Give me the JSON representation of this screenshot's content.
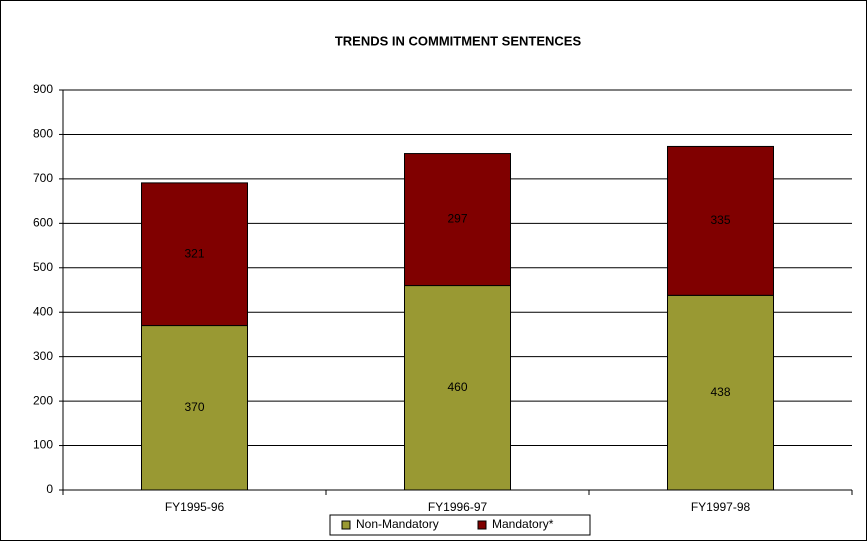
{
  "chart_data": {
    "type": "stacked_bar",
    "title": "TRENDS IN COMMITMENT SENTENCES",
    "categories": [
      "FY1995-96",
      "FY1996-97",
      "FY1997-98"
    ],
    "series": [
      {
        "name": "Non-Mandatory",
        "color": "#999933",
        "values": [
          370,
          460,
          438
        ]
      },
      {
        "name": "Mandatory*",
        "color": "#800000",
        "values": [
          321,
          297,
          335
        ]
      }
    ],
    "ylim": [
      0,
      900
    ],
    "yticks": [
      0,
      100,
      200,
      300,
      400,
      500,
      600,
      700,
      800,
      900
    ],
    "grid": true,
    "legend": "bottom"
  }
}
